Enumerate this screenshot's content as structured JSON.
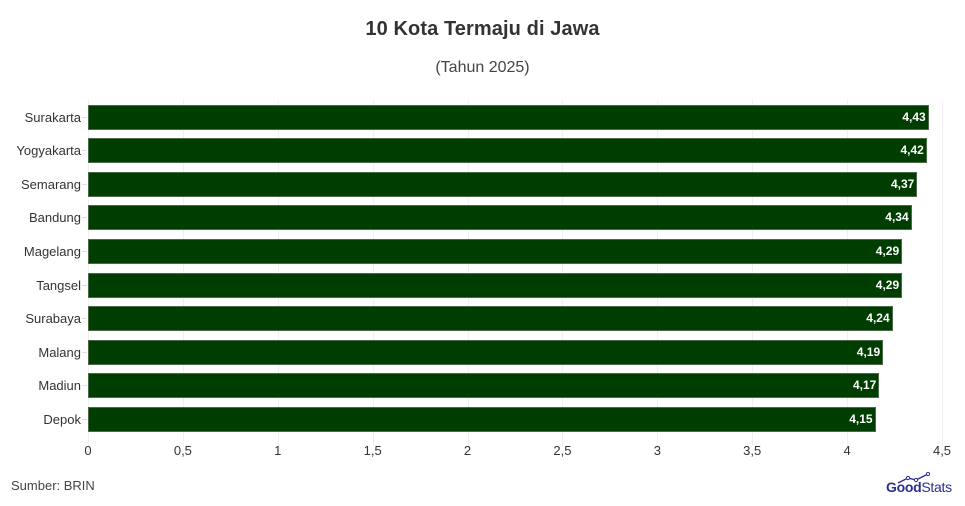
{
  "header": {
    "title": "10 Kota Termaju di Jawa",
    "subtitle": "(Tahun 2025)"
  },
  "footer": {
    "source": "Sumber: BRIN",
    "logo_bold": "Good",
    "logo_light": "Stats"
  },
  "colors": {
    "bar": "#003d00",
    "logo": "#2b2f8f"
  },
  "chart_data": {
    "type": "bar",
    "orientation": "horizontal",
    "title": "10 Kota Termaju di Jawa",
    "subtitle": "(Tahun 2025)",
    "categories": [
      "Surakarta",
      "Yogyakarta",
      "Semarang",
      "Bandung",
      "Magelang",
      "Tangsel",
      "Surabaya",
      "Malang",
      "Madiun",
      "Depok"
    ],
    "values": [
      4.43,
      4.42,
      4.37,
      4.34,
      4.29,
      4.29,
      4.24,
      4.19,
      4.17,
      4.15
    ],
    "value_labels": [
      "4,43",
      "4,42",
      "4,37",
      "4,34",
      "4,29",
      "4,29",
      "4,24",
      "4,19",
      "4,17",
      "4,15"
    ],
    "xlabel": "",
    "ylabel": "",
    "xlim": [
      0,
      4.5
    ],
    "x_ticks": [
      "0",
      "0,5",
      "1",
      "1,5",
      "2",
      "2,5",
      "3",
      "3,5",
      "4",
      "4,5"
    ],
    "grid": true,
    "legend": null,
    "source": "Sumber: BRIN"
  }
}
